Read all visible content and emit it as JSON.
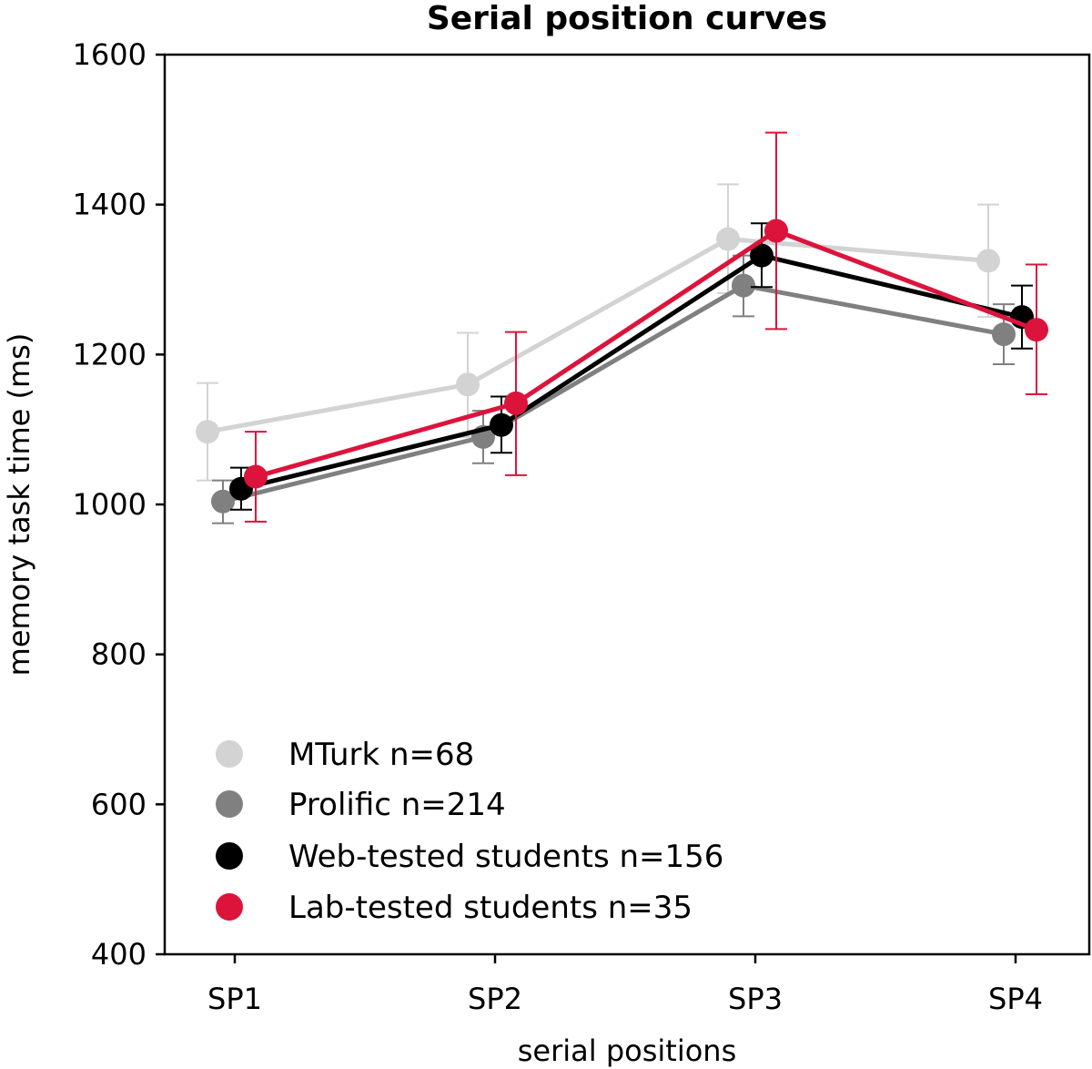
{
  "chart_data": {
    "type": "line",
    "title": "Serial position curves",
    "xlabel": "serial positions",
    "ylabel": "memory task time (ms)",
    "categories": [
      "SP1",
      "SP2",
      "SP3",
      "SP4"
    ],
    "ylim": [
      400,
      1600
    ],
    "yticks": [
      400,
      600,
      800,
      1000,
      1200,
      1400,
      1600
    ],
    "ytick_labels": [
      "400",
      "600",
      "800",
      "1000",
      "1200",
      "1400",
      "1600"
    ],
    "legend_position": "lower-left",
    "series": [
      {
        "name": "MTurk n=68",
        "color": "#d3d3d3",
        "values": [
          1097,
          1160,
          1354,
          1325
        ],
        "err_low": [
          1032,
          1090,
          1282,
          1250
        ],
        "err_high": [
          1162,
          1229,
          1427,
          1400
        ]
      },
      {
        "name": "Prolific n=214",
        "color": "#808080",
        "values": [
          1004,
          1090,
          1292,
          1227
        ],
        "err_low": [
          975,
          1055,
          1251,
          1187
        ],
        "err_high": [
          1032,
          1125,
          1332,
          1267
        ]
      },
      {
        "name": "Web-tested students n=156",
        "color": "#000000",
        "values": [
          1021,
          1106,
          1332,
          1250
        ],
        "err_low": [
          993,
          1069,
          1290,
          1208
        ],
        "err_high": [
          1049,
          1144,
          1375,
          1292
        ]
      },
      {
        "name": "Lab-tested students n=35",
        "color": "#dc143c",
        "values": [
          1037,
          1135,
          1365,
          1233
        ],
        "err_low": [
          977,
          1039,
          1234,
          1147
        ],
        "err_high": [
          1097,
          1230,
          1496,
          1320
        ]
      }
    ]
  }
}
